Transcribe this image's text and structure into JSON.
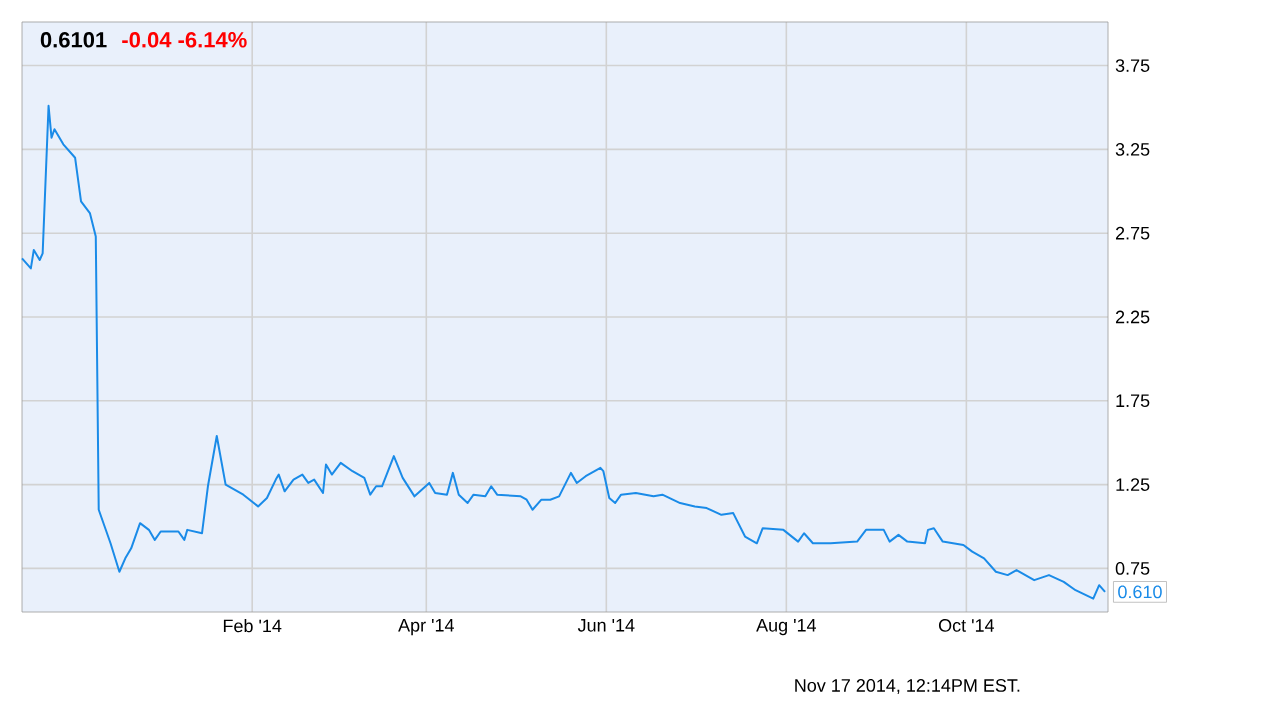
{
  "chart_data": {
    "type": "line",
    "title": "0.6101",
    "subtitle": "-0.04  -6.14%",
    "x": [
      "2013-11-15",
      "2013-11-18",
      "2013-11-19",
      "2013-11-21",
      "2013-11-22",
      "2013-11-24",
      "2013-11-25",
      "2013-11-26",
      "2013-11-29",
      "2013-12-03",
      "2013-12-05",
      "2013-12-08",
      "2013-12-10",
      "2013-12-11",
      "2013-12-13",
      "2013-12-15",
      "2013-12-18",
      "2013-12-20",
      "2013-12-22",
      "2013-12-25",
      "2013-12-28",
      "2013-12-30",
      "2014-01-01",
      "2014-01-07",
      "2014-01-09",
      "2014-01-10",
      "2014-01-15",
      "2014-01-17",
      "2014-01-20",
      "2014-01-23",
      "2014-01-29",
      "2014-02-03",
      "2014-02-06",
      "2014-02-09",
      "2014-02-10",
      "2014-02-12",
      "2014-02-15",
      "2014-02-18",
      "2014-02-20",
      "2014-02-22",
      "2014-02-25",
      "2014-02-26",
      "2014-02-28",
      "2014-03-03",
      "2014-03-07",
      "2014-03-11",
      "2014-03-13",
      "2014-03-15",
      "2014-03-17",
      "2014-03-21",
      "2014-03-24",
      "2014-03-28",
      "2014-04-02",
      "2014-04-04",
      "2014-04-08",
      "2014-04-10",
      "2014-04-12",
      "2014-04-15",
      "2014-04-17",
      "2014-04-21",
      "2014-04-23",
      "2014-04-25",
      "2014-05-03",
      "2014-05-05",
      "2014-05-07",
      "2014-05-10",
      "2014-05-13",
      "2014-05-16",
      "2014-05-20",
      "2014-05-22",
      "2014-05-25",
      "2014-05-30",
      "2014-05-31",
      "2014-06-02",
      "2014-06-04",
      "2014-06-06",
      "2014-06-11",
      "2014-06-17",
      "2014-06-20",
      "2014-06-26",
      "2014-07-01",
      "2014-07-05",
      "2014-07-10",
      "2014-07-14",
      "2014-07-18",
      "2014-07-22",
      "2014-07-24",
      "2014-07-31",
      "2014-08-05",
      "2014-08-07",
      "2014-08-10",
      "2014-08-16",
      "2014-08-25",
      "2014-08-28",
      "2014-09-03",
      "2014-09-05",
      "2014-09-08",
      "2014-09-11",
      "2014-09-17",
      "2014-09-18",
      "2014-09-20",
      "2014-09-23",
      "2014-09-30",
      "2014-10-03",
      "2014-10-07",
      "2014-10-11",
      "2014-10-15",
      "2014-10-18",
      "2014-10-24",
      "2014-10-29",
      "2014-11-03",
      "2014-11-07",
      "2014-11-13",
      "2014-11-15",
      "2014-11-17"
    ],
    "values": [
      2.6,
      2.54,
      2.65,
      2.59,
      2.63,
      3.51,
      3.32,
      3.37,
      3.28,
      3.2,
      2.94,
      2.87,
      2.73,
      1.1,
      1.0,
      0.9,
      0.73,
      0.81,
      0.87,
      1.02,
      0.98,
      0.92,
      0.97,
      0.97,
      0.92,
      0.98,
      0.96,
      1.24,
      1.54,
      1.25,
      1.19,
      1.12,
      1.17,
      1.28,
      1.31,
      1.21,
      1.28,
      1.31,
      1.26,
      1.28,
      1.2,
      1.37,
      1.31,
      1.38,
      1.33,
      1.29,
      1.19,
      1.24,
      1.24,
      1.42,
      1.29,
      1.18,
      1.26,
      1.2,
      1.19,
      1.32,
      1.19,
      1.14,
      1.19,
      1.18,
      1.24,
      1.19,
      1.18,
      1.16,
      1.1,
      1.16,
      1.16,
      1.18,
      1.32,
      1.26,
      1.3,
      1.35,
      1.33,
      1.17,
      1.14,
      1.19,
      1.2,
      1.18,
      1.19,
      1.14,
      1.12,
      1.11,
      1.07,
      1.08,
      0.94,
      0.9,
      0.99,
      0.98,
      0.91,
      0.96,
      0.9,
      0.9,
      0.91,
      0.98,
      0.98,
      0.91,
      0.95,
      0.91,
      0.9,
      0.98,
      0.99,
      0.91,
      0.89,
      0.85,
      0.81,
      0.73,
      0.71,
      0.74,
      0.68,
      0.71,
      0.67,
      0.62,
      0.57,
      0.65,
      0.61
    ],
    "color": "#1a8be8",
    "xlim": [
      "2013-11-15",
      "2014-11-18"
    ],
    "xticks": [
      {
        "value": "2014-02-01",
        "label": "Feb '14"
      },
      {
        "value": "2014-04-01",
        "label": "Apr '14"
      },
      {
        "value": "2014-06-01",
        "label": "Jun '14"
      },
      {
        "value": "2014-08-01",
        "label": "Aug '14"
      },
      {
        "value": "2014-10-01",
        "label": "Oct '14"
      }
    ],
    "ylim": [
      0.49,
      4.01
    ],
    "yticks": [
      0.75,
      1.25,
      1.75,
      2.25,
      2.75,
      3.25,
      3.75
    ],
    "grid": true,
    "annotations": [
      {
        "text": "0.610",
        "x": "2014-11-17",
        "y": 0.61
      },
      "Nov 17 2014, 12:14PM EST."
    ]
  }
}
